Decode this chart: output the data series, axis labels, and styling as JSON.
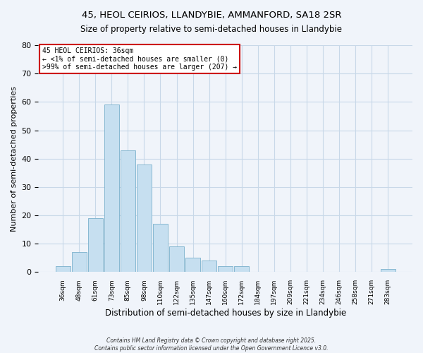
{
  "title": "45, HEOL CEIRIOS, LLANDYBIE, AMMANFORD, SA18 2SR",
  "subtitle": "Size of property relative to semi-detached houses in Llandybie",
  "xlabel": "Distribution of semi-detached houses by size in Llandybie",
  "ylabel": "Number of semi-detached properties",
  "bin_labels": [
    "36sqm",
    "48sqm",
    "61sqm",
    "73sqm",
    "85sqm",
    "98sqm",
    "110sqm",
    "122sqm",
    "135sqm",
    "147sqm",
    "160sqm",
    "172sqm",
    "184sqm",
    "197sqm",
    "209sqm",
    "221sqm",
    "234sqm",
    "246sqm",
    "258sqm",
    "271sqm",
    "283sqm"
  ],
  "bar_heights": [
    2,
    7,
    19,
    59,
    43,
    38,
    17,
    9,
    5,
    4,
    2,
    2,
    0,
    0,
    0,
    0,
    0,
    0,
    0,
    0,
    1
  ],
  "bar_color": "#c6dff0",
  "bar_edge_color": "#7ab0cc",
  "ylim": [
    0,
    80
  ],
  "yticks": [
    0,
    10,
    20,
    30,
    40,
    50,
    60,
    70,
    80
  ],
  "annotation_title": "45 HEOL CEIRIOS: 36sqm",
  "annotation_line1": "← <1% of semi-detached houses are smaller (0)",
  "annotation_line2": ">99% of semi-detached houses are larger (207) →",
  "annotation_box_color": "#cc0000",
  "footnote1": "Contains HM Land Registry data © Crown copyright and database right 2025.",
  "footnote2": "Contains public sector information licensed under the Open Government Licence v3.0.",
  "bg_color": "#f0f4fa",
  "grid_color": "#c8d8e8"
}
